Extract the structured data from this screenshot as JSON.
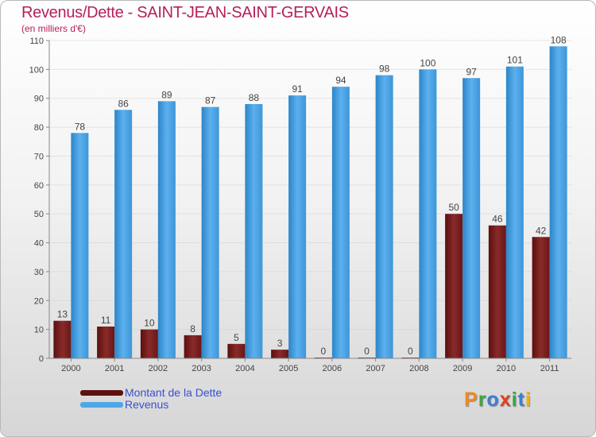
{
  "title": "Revenus/Dette - SAINT-JEAN-SAINT-GERVAIS",
  "subtitle": "(en milliers d'€)",
  "logo": {
    "text": "Proxiti"
  },
  "colors": {
    "title": "#b5205a",
    "debt": "#7a1e1e",
    "revenue": "#4ea6e6",
    "legend_text": "#3a4fd0"
  },
  "chart_data": {
    "type": "bar",
    "categories": [
      "2000",
      "2001",
      "2002",
      "2003",
      "2004",
      "2005",
      "2006",
      "2007",
      "2008",
      "2009",
      "2010",
      "2011"
    ],
    "series": [
      {
        "name": "Montant de la Dette",
        "values": [
          13,
          11,
          10,
          8,
          5,
          3,
          0,
          0,
          0,
          50,
          46,
          42
        ],
        "color": "#7a1e1e"
      },
      {
        "name": "Revenus",
        "values": [
          78,
          86,
          89,
          87,
          88,
          91,
          94,
          98,
          100,
          97,
          101,
          108
        ],
        "color": "#4ea6e6"
      }
    ],
    "ylim": [
      0,
      110
    ],
    "yticks": [
      0,
      10,
      20,
      30,
      40,
      50,
      60,
      70,
      80,
      90,
      100,
      110
    ],
    "grid": true,
    "legend": "bottom-left"
  }
}
